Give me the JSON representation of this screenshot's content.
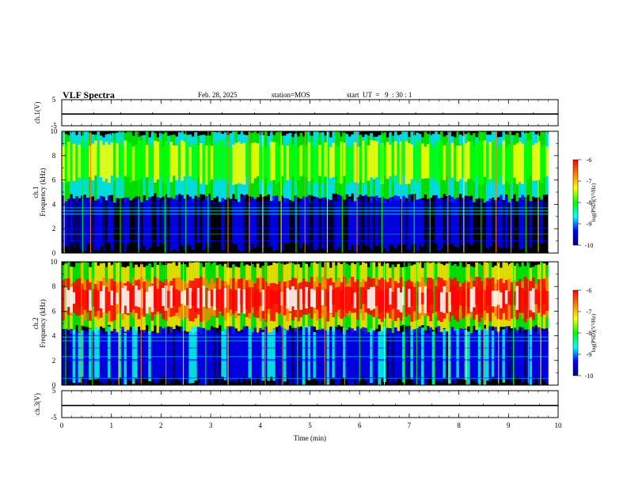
{
  "header": {
    "title": "VLF Spectra",
    "date": "Feb. 28, 2025",
    "station": "station=MOS",
    "start_ut": "start  UT  =   9  : 30 : 1"
  },
  "colors": {
    "colormap": [
      "#000080",
      "#0000ff",
      "#00ffff",
      "#00ff00",
      "#ffff00",
      "#ff8000",
      "#ff0000",
      "#ffffff"
    ],
    "background": "#000000"
  },
  "chart_data": [
    {
      "type": "line",
      "name": "ch1-waveform",
      "ylabel": "ch.1(V)",
      "ylim": [
        -5,
        5
      ],
      "yticks": [
        "5",
        "-5"
      ],
      "x": [
        0,
        10
      ],
      "values": [
        -0.5,
        -0.5
      ]
    },
    {
      "type": "heatmap",
      "name": "ch1-spectrogram",
      "ylabel": "ch.1\nFrequency (kHz)",
      "ylim": [
        0,
        10
      ],
      "yticks": [
        "0",
        "2",
        "4",
        "6",
        "8",
        "10"
      ],
      "xlim": [
        0,
        9.8
      ],
      "bands": [
        {
          "f0": 4.5,
          "f1": 9.8,
          "level": 2.4
        },
        {
          "f0": 6.0,
          "f1": 9.0,
          "level": 3.4
        },
        {
          "f0": 0.5,
          "f1": 4.5,
          "level": 0.6
        }
      ],
      "spikes_at_min": [
        0.05,
        0.42,
        0.58,
        1.18,
        1.55,
        2.08,
        2.5,
        2.95,
        3.35,
        3.78,
        4.05,
        4.42,
        4.72,
        4.9,
        5.35,
        5.65,
        5.95,
        6.45,
        6.85,
        7.1,
        7.42,
        7.78,
        8.1,
        8.45,
        8.75,
        9.05,
        9.35,
        9.6
      ],
      "colorbar": {
        "label": "log(PSD)(V²/Hz)",
        "ticks": [
          "-6",
          "-7",
          "-8",
          "-9",
          "-10"
        ],
        "range": [
          -10,
          -6
        ]
      }
    },
    {
      "type": "heatmap",
      "name": "ch2-spectrogram",
      "ylabel": "ch.2\nFrequency (kHz)",
      "ylim": [
        0,
        10
      ],
      "yticks": [
        "0",
        "2",
        "4",
        "6",
        "8",
        "10"
      ],
      "xlim": [
        0,
        9.8
      ],
      "bands": [
        {
          "f0": 4.5,
          "f1": 9.8,
          "level": 3.6
        },
        {
          "f0": 5.5,
          "f1": 8.5,
          "level": 5.6
        },
        {
          "f0": 6.2,
          "f1": 7.8,
          "level": 6.3
        },
        {
          "f0": 0.3,
          "f1": 4.5,
          "level": 1.2
        }
      ],
      "spikes_at_min": [
        0.08,
        0.4,
        0.62,
        1.15,
        1.6,
        2.1,
        2.45,
        2.9,
        3.35,
        3.82,
        4.1,
        4.45,
        4.75,
        5.3,
        5.7,
        6.0,
        6.5,
        6.9,
        7.15,
        7.5,
        7.8,
        8.15,
        8.5,
        8.8,
        9.1,
        9.4,
        9.65
      ],
      "colorbar": {
        "label": "log(PSD)(V²/Hz)",
        "ticks": [
          "-6",
          "-7",
          "-8",
          "-9",
          "-10"
        ],
        "range": [
          -10,
          -6
        ]
      }
    },
    {
      "type": "line",
      "name": "ch3-waveform",
      "ylabel": "ch.3(V)",
      "ylim": [
        -5,
        5
      ],
      "yticks": [
        "5",
        "-5"
      ],
      "x": [
        0,
        10
      ],
      "values": [
        -0.5,
        -0.5
      ]
    }
  ],
  "xaxis": {
    "label": "Time  (min)",
    "ticks": [
      "0",
      "1",
      "2",
      "3",
      "4",
      "5",
      "6",
      "7",
      "8",
      "9",
      "10"
    ],
    "xlim": [
      0,
      10
    ]
  }
}
